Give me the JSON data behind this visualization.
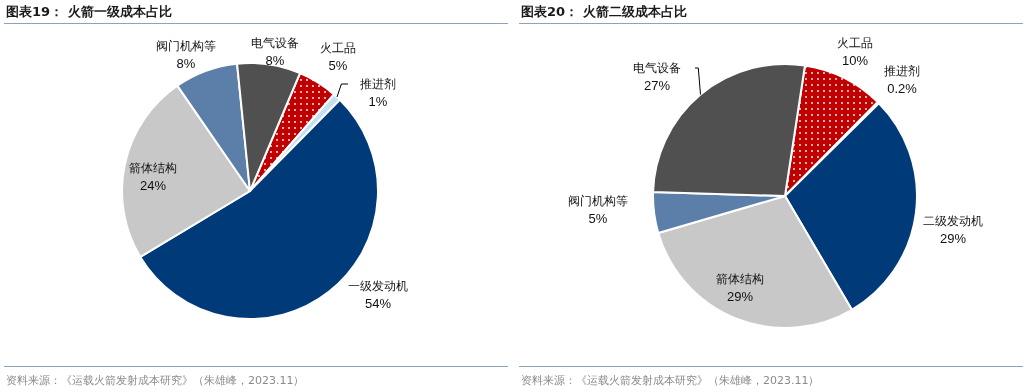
{
  "chart_data": [
    {
      "type": "pie",
      "title": "图表19：  火箭一级成本占比",
      "categories": [
        "火工品",
        "推进剂",
        "一级发动机",
        "箭体结构",
        "阀门机构等",
        "电气设备"
      ],
      "values": [
        5,
        1,
        54,
        24,
        8,
        8
      ],
      "value_labels": [
        "5%",
        "1%",
        "54%",
        "24%",
        "8%",
        "8%"
      ],
      "colors": [
        "#c00000",
        "#c5e0f0",
        "#003a78",
        "#c8c8c8",
        "#5b7fa8",
        "#505050"
      ],
      "annotations": [
        "资料来源：《运载火箭发射成本研究》（朱雄峰，2023.11）"
      ]
    },
    {
      "type": "pie",
      "title": "图表20：  火箭二级成本占比",
      "categories": [
        "火工品",
        "推进剂",
        "二级发动机",
        "箭体结构",
        "阀门机构等",
        "电气设备"
      ],
      "values": [
        10,
        0.2,
        29,
        29,
        5,
        27
      ],
      "value_labels": [
        "10%",
        "0.2%",
        "29%",
        "29%",
        "5%",
        "27%"
      ],
      "colors": [
        "#c00000",
        "#c5e0f0",
        "#003a78",
        "#c8c8c8",
        "#5b7fa8",
        "#505050"
      ],
      "annotations": [
        "资料来源：《运载火箭发射成本研究》（朱雄峰，2023.11）"
      ]
    }
  ]
}
